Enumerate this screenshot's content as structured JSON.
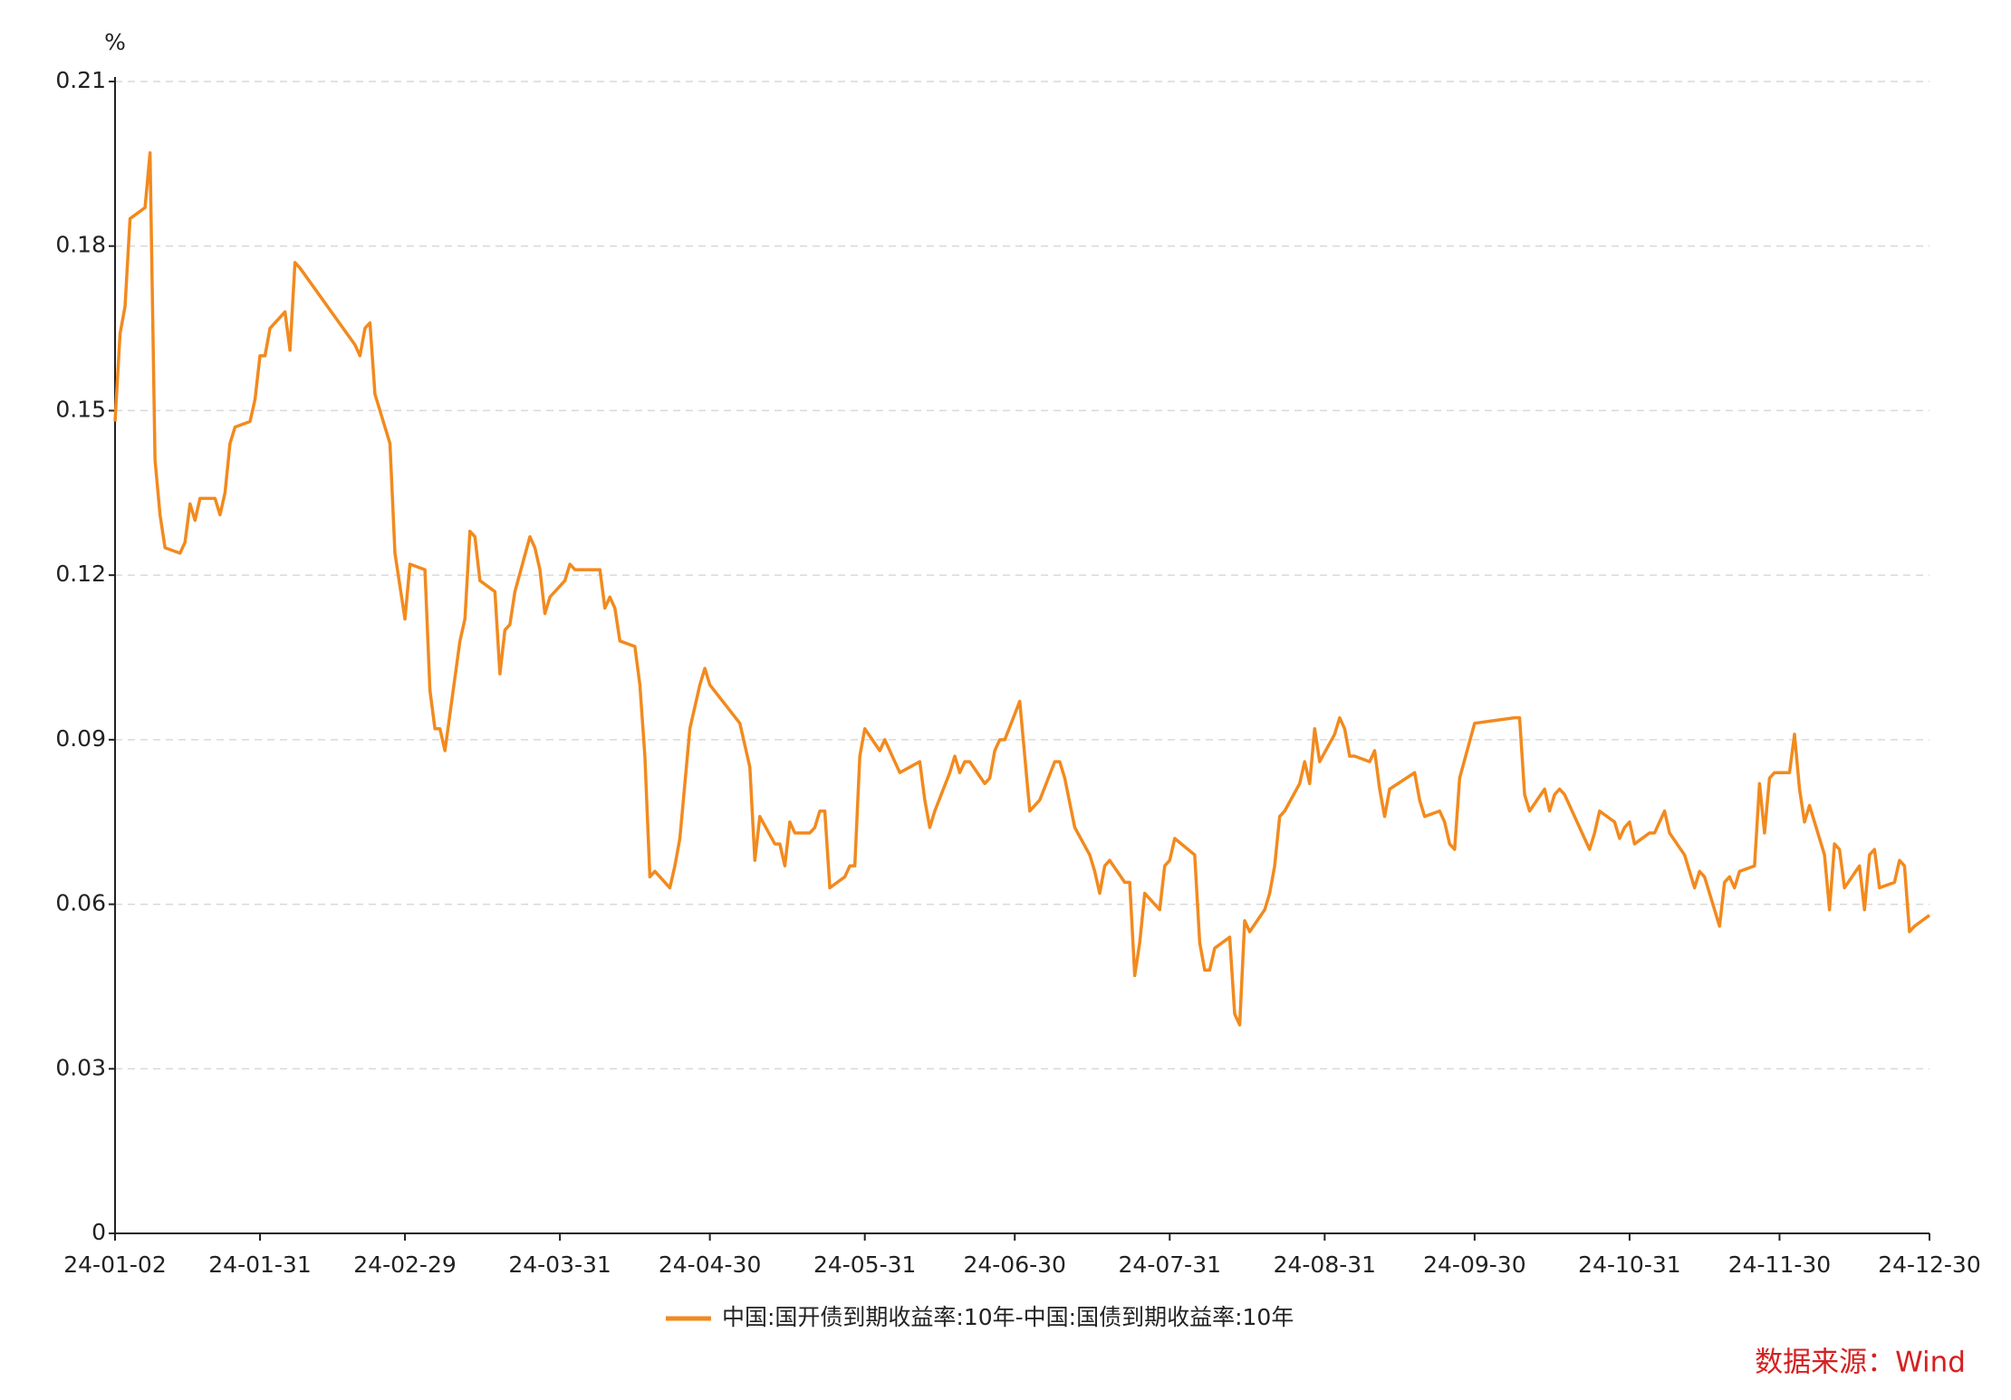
{
  "chart_data": {
    "type": "line",
    "y_label": "%",
    "source": "数据来源：Wind",
    "x": [
      "24-01-02",
      "24-01-03",
      "24-01-04",
      "24-01-05",
      "24-01-08",
      "24-01-09",
      "24-01-10",
      "24-01-11",
      "24-01-12",
      "24-01-15",
      "24-01-16",
      "24-01-17",
      "24-01-18",
      "24-01-19",
      "24-01-22",
      "24-01-23",
      "24-01-24",
      "24-01-25",
      "24-01-26",
      "24-01-29",
      "24-01-30",
      "24-01-31",
      "24-02-01",
      "24-02-02",
      "24-02-05",
      "24-02-06",
      "24-02-07",
      "24-02-08",
      "24-02-19",
      "24-02-20",
      "24-02-21",
      "24-02-22",
      "24-02-23",
      "24-02-26",
      "24-02-27",
      "24-02-28",
      "24-02-29",
      "24-03-01",
      "24-03-04",
      "24-03-05",
      "24-03-06",
      "24-03-07",
      "24-03-08",
      "24-03-11",
      "24-03-12",
      "24-03-13",
      "24-03-14",
      "24-03-15",
      "24-03-18",
      "24-03-19",
      "24-03-20",
      "24-03-21",
      "24-03-22",
      "24-03-25",
      "24-03-26",
      "24-03-27",
      "24-03-28",
      "24-03-29",
      "24-04-01",
      "24-04-02",
      "24-04-03",
      "24-04-08",
      "24-04-09",
      "24-04-10",
      "24-04-11",
      "24-04-12",
      "24-04-15",
      "24-04-16",
      "24-04-17",
      "24-04-18",
      "24-04-19",
      "24-04-22",
      "24-04-23",
      "24-04-24",
      "24-04-25",
      "24-04-26",
      "24-04-28",
      "24-04-29",
      "24-04-30",
      "24-05-06",
      "24-05-07",
      "24-05-08",
      "24-05-09",
      "24-05-10",
      "24-05-13",
      "24-05-14",
      "24-05-15",
      "24-05-16",
      "24-05-17",
      "24-05-20",
      "24-05-21",
      "24-05-22",
      "24-05-23",
      "24-05-24",
      "24-05-27",
      "24-05-28",
      "24-05-29",
      "24-05-30",
      "24-05-31",
      "24-06-03",
      "24-06-04",
      "24-06-07",
      "24-06-11",
      "24-06-12",
      "24-06-13",
      "24-06-14",
      "24-06-17",
      "24-06-18",
      "24-06-19",
      "24-06-20",
      "24-06-21",
      "24-06-24",
      "24-06-25",
      "24-06-26",
      "24-06-27",
      "24-06-28",
      "24-07-01",
      "24-07-03",
      "24-07-04",
      "24-07-05",
      "24-07-08",
      "24-07-09",
      "24-07-10",
      "24-07-12",
      "24-07-15",
      "24-07-16",
      "24-07-17",
      "24-07-18",
      "24-07-19",
      "24-07-22",
      "24-07-23",
      "24-07-24",
      "24-07-25",
      "24-07-26",
      "24-07-29",
      "24-07-30",
      "24-07-31",
      "24-08-01",
      "24-08-05",
      "24-08-06",
      "24-08-07",
      "24-08-08",
      "24-08-09",
      "24-08-12",
      "24-08-13",
      "24-08-14",
      "24-08-15",
      "24-08-16",
      "24-08-19",
      "24-08-20",
      "24-08-21",
      "24-08-22",
      "24-08-23",
      "24-08-26",
      "24-08-27",
      "24-08-28",
      "24-08-29",
      "24-08-30",
      "24-09-02",
      "24-09-03",
      "24-09-04",
      "24-09-05",
      "24-09-06",
      "24-09-09",
      "24-09-10",
      "24-09-11",
      "24-09-12",
      "24-09-13",
      "24-09-18",
      "24-09-19",
      "24-09-20",
      "24-09-23",
      "24-09-24",
      "24-09-25",
      "24-09-26",
      "24-09-27",
      "24-09-30",
      "24-10-08",
      "24-10-09",
      "24-10-10",
      "24-10-11",
      "24-10-14",
      "24-10-15",
      "24-10-16",
      "24-10-17",
      "24-10-18",
      "24-10-21",
      "24-10-22",
      "24-10-23",
      "24-10-24",
      "24-10-25",
      "24-10-28",
      "24-10-29",
      "24-10-30",
      "24-10-31",
      "24-11-01",
      "24-11-04",
      "24-11-05",
      "24-11-06",
      "24-11-07",
      "24-11-08",
      "24-11-11",
      "24-11-12",
      "24-11-13",
      "24-11-14",
      "24-11-15",
      "24-11-18",
      "24-11-19",
      "24-11-20",
      "24-11-21",
      "24-11-22",
      "24-11-25",
      "24-11-26",
      "24-11-27",
      "24-11-28",
      "24-11-29",
      "24-12-02",
      "24-12-03",
      "24-12-04",
      "24-12-05",
      "24-12-06",
      "24-12-09",
      "24-12-10",
      "24-12-11",
      "24-12-12",
      "24-12-13",
      "24-12-16",
      "24-12-17",
      "24-12-18",
      "24-12-19",
      "24-12-20",
      "24-12-23",
      "24-12-24",
      "24-12-25",
      "24-12-26",
      "24-12-27",
      "24-12-30"
    ],
    "series": [
      {
        "name": "中国:国开债到期收益率:10年-中国:国债到期收益率:10年",
        "color": "#f28a1e",
        "values": [
          0.148,
          0.164,
          0.169,
          0.185,
          0.187,
          0.197,
          0.141,
          0.131,
          0.125,
          0.124,
          0.126,
          0.133,
          0.13,
          0.134,
          0.134,
          0.131,
          0.135,
          0.144,
          0.147,
          0.148,
          0.152,
          0.16,
          0.16,
          0.165,
          0.168,
          0.161,
          0.177,
          0.176,
          0.162,
          0.16,
          0.165,
          0.166,
          0.153,
          0.144,
          0.124,
          0.118,
          0.112,
          0.122,
          0.121,
          0.099,
          0.092,
          0.092,
          0.088,
          0.108,
          0.112,
          0.128,
          0.127,
          0.119,
          0.117,
          0.102,
          0.11,
          0.111,
          0.117,
          0.127,
          0.125,
          0.121,
          0.113,
          0.116,
          0.119,
          0.122,
          0.121,
          0.121,
          0.114,
          0.116,
          0.114,
          0.108,
          0.107,
          0.1,
          0.087,
          0.065,
          0.066,
          0.063,
          0.067,
          0.072,
          0.082,
          0.092,
          0.1,
          0.103,
          0.1,
          0.093,
          0.089,
          0.085,
          0.068,
          0.076,
          0.071,
          0.071,
          0.067,
          0.075,
          0.073,
          0.073,
          0.074,
          0.077,
          0.077,
          0.063,
          0.065,
          0.067,
          0.067,
          0.087,
          0.092,
          0.088,
          0.09,
          0.084,
          0.086,
          0.079,
          0.074,
          0.077,
          0.084,
          0.087,
          0.084,
          0.086,
          0.086,
          0.082,
          0.083,
          0.088,
          0.09,
          0.09,
          0.097,
          0.077,
          0.078,
          0.079,
          0.086,
          0.086,
          0.083,
          0.074,
          0.069,
          0.066,
          0.062,
          0.067,
          0.068,
          0.064,
          0.064,
          0.047,
          0.053,
          0.062,
          0.059,
          0.067,
          0.068,
          0.072,
          0.069,
          0.053,
          0.048,
          0.048,
          0.052,
          0.054,
          0.04,
          0.038,
          0.057,
          0.055,
          0.059,
          0.062,
          0.067,
          0.076,
          0.077,
          0.082,
          0.086,
          0.082,
          0.092,
          0.086,
          0.091,
          0.094,
          0.092,
          0.087,
          0.087,
          0.086,
          0.088,
          0.081,
          0.076,
          0.081,
          0.084,
          0.079,
          0.076,
          0.077,
          0.075,
          0.071,
          0.07,
          0.083,
          0.093,
          0.094,
          0.094,
          0.08,
          0.077,
          0.081,
          0.077,
          0.08,
          0.081,
          0.08,
          0.074,
          0.072,
          0.07,
          0.073,
          0.077,
          0.075,
          0.072,
          0.074,
          0.075,
          0.071,
          0.073,
          0.073,
          0.075,
          0.077,
          0.073,
          0.069,
          0.066,
          0.063,
          0.066,
          0.065,
          0.056,
          0.064,
          0.065,
          0.063,
          0.066,
          0.067,
          0.082,
          0.073,
          0.083,
          0.084,
          0.084,
          0.091,
          0.081,
          0.075,
          0.078,
          0.069,
          0.059,
          0.071,
          0.07,
          0.063,
          0.067,
          0.059,
          0.069,
          0.07,
          0.063,
          0.064,
          0.068,
          0.067,
          0.055,
          0.056,
          0.058
        ]
      }
    ],
    "xlim": [
      "24-01-02",
      "24-12-30"
    ],
    "xticks": [
      "24-01-02",
      "24-01-31",
      "24-02-29",
      "24-03-31",
      "24-04-30",
      "24-05-31",
      "24-06-30",
      "24-07-31",
      "24-08-31",
      "24-09-30",
      "24-10-31",
      "24-11-30",
      "24-12-30"
    ],
    "ylim": [
      0,
      0.21
    ],
    "yticks": [
      0,
      0.03,
      0.06,
      0.09,
      0.12,
      0.15,
      0.18,
      0.21
    ],
    "grid": true
  }
}
